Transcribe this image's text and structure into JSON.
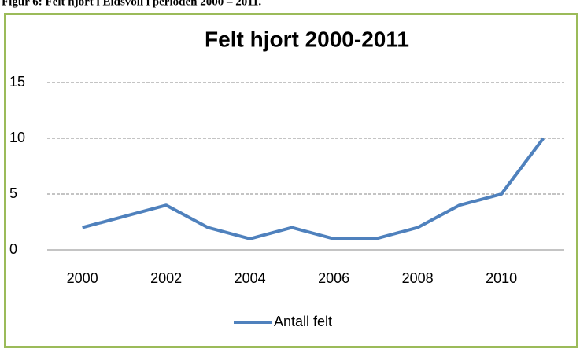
{
  "caption": "Figur 6: Felt hjort i Eidsvoll i perioden 2000 – 2011.",
  "chart_data": {
    "type": "line",
    "title": "Felt hjort 2000-2011",
    "categories": [
      "2000",
      null,
      "2002",
      null,
      "2004",
      null,
      "2006",
      null,
      "2008",
      null,
      "2010",
      null
    ],
    "series": [
      {
        "name": "Antall felt",
        "color": "#4f81bd",
        "values": [
          2,
          3,
          4,
          2,
          1,
          2,
          1,
          1,
          2,
          4,
          5,
          10
        ]
      }
    ],
    "ylim": [
      0,
      15
    ],
    "yticks": [
      0,
      5,
      10,
      15
    ],
    "grid": true,
    "legend": "bottom"
  }
}
